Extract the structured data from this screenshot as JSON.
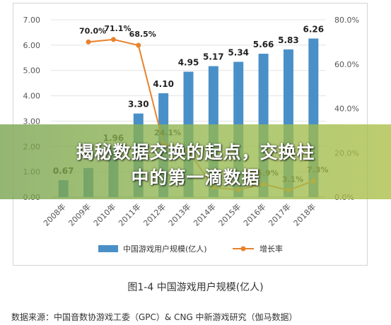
{
  "chart_data": {
    "type": "bar+line",
    "categories": [
      "2008年",
      "2009年",
      "2010年",
      "2011年",
      "2012年",
      "2013年",
      "2014年",
      "2015年",
      "2016年",
      "2017年",
      "2018年"
    ],
    "series": [
      {
        "name": "中国游戏用户规模(亿人)",
        "type": "bar",
        "axis": "left",
        "color": "#4a90c8",
        "values": [
          0.67,
          1.15,
          1.96,
          3.3,
          4.1,
          4.95,
          5.17,
          5.34,
          5.66,
          5.83,
          6.26
        ],
        "labels": [
          "0.67",
          "",
          "1.96",
          "3.30",
          "4.10",
          "4.95",
          "5.17",
          "5.34",
          "5.66",
          "5.83",
          "6.26"
        ]
      },
      {
        "name": "增长率",
        "type": "line",
        "axis": "right",
        "color": "#e8822d",
        "values": [
          null,
          70.0,
          71.1,
          68.5,
          24.1,
          20.8,
          4.4,
          3.3,
          5.9,
          3.1,
          7.3
        ],
        "labels": [
          "",
          "70.0%",
          "71.1%",
          "68.5%",
          "24.1%",
          "",
          "",
          "",
          "5.9%",
          "3.1%",
          "7.3%"
        ]
      }
    ],
    "y_left": {
      "min": 0,
      "max": 7,
      "ticks": [
        "0.00",
        "1.00",
        "2.00",
        "3.00",
        "4.00",
        "5.00",
        "6.00",
        "7.00"
      ]
    },
    "y_right": {
      "min": 0,
      "max": 80,
      "ticks": [
        "0.0%",
        "20.0%",
        "40.0%",
        "60.0%",
        "80.0%"
      ]
    },
    "grid": true,
    "legend_position": "bottom"
  },
  "caption": "图1-4  中国游戏用户规模(亿人)",
  "source_note": "数据来源：中国音数协游戏工委（GPC）& CNG 中新游戏研究（伽马数据）",
  "banner": {
    "line1": "揭秘数据交换的起点，交换柱",
    "line2": "中的第一滴数据"
  }
}
